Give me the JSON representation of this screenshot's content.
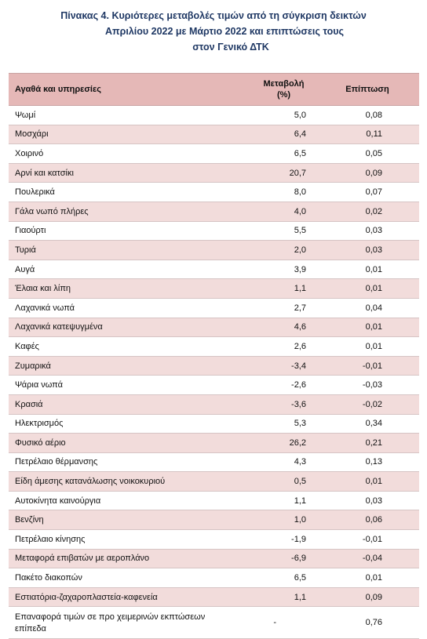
{
  "title": {
    "line1": "Πίνακας  4. Κυριότερες μεταβολές τιμών από τη σύγκριση δεικτών",
    "line2": "Απριλίου 2022 με Μάρτιο 2022 και επιπτώσεις τους",
    "line3": "στον Γενικό ΔΤΚ"
  },
  "table": {
    "headers": {
      "name": "Αγαθά και υπηρεσίες",
      "change_line1": "Μεταβολή",
      "change_line2": "(%)",
      "impact": "Επίπτωση"
    },
    "rows": [
      {
        "name": "Ψωμί",
        "change": "5,0",
        "impact": "0,08"
      },
      {
        "name": "Μοσχάρι",
        "change": "6,4",
        "impact": "0,11"
      },
      {
        "name": "Χοιρινό",
        "change": "6,5",
        "impact": "0,05"
      },
      {
        "name": "Αρνί και κατσίκι",
        "change": "20,7",
        "impact": "0,09"
      },
      {
        "name": "Πουλερικά",
        "change": "8,0",
        "impact": "0,07"
      },
      {
        "name": "Γάλα νωπό πλήρες",
        "change": "4,0",
        "impact": "0,02"
      },
      {
        "name": "Γιαούρτι",
        "change": "5,5",
        "impact": "0,03"
      },
      {
        "name": "Τυριά",
        "change": "2,0",
        "impact": "0,03"
      },
      {
        "name": "Αυγά",
        "change": "3,9",
        "impact": "0,01"
      },
      {
        "name": "Έλαια και λίπη",
        "change": "1,1",
        "impact": "0,01"
      },
      {
        "name": "Λαχανικά νωπά",
        "change": "2,7",
        "impact": "0,04"
      },
      {
        "name": "Λαχανικά κατεψυγμένα",
        "change": "4,6",
        "impact": "0,01"
      },
      {
        "name": "Καφές",
        "change": "2,6",
        "impact": "0,01"
      },
      {
        "name": "Ζυμαρικά",
        "change": "-3,4",
        "impact": "-0,01"
      },
      {
        "name": "Ψάρια νωπά",
        "change": "-2,6",
        "impact": "-0,03"
      },
      {
        "name": "Κρασιά",
        "change": "-3,6",
        "impact": "-0,02"
      },
      {
        "name": "Ηλεκτρισμός",
        "change": "5,3",
        "impact": "0,34"
      },
      {
        "name": "Φυσικό αέριο",
        "change": "26,2",
        "impact": "0,21"
      },
      {
        "name": "Πετρέλαιο θέρμανσης",
        "change": "4,3",
        "impact": "0,13"
      },
      {
        "name": "Είδη άμεσης κατανάλωσης νοικοκυριού",
        "change": "0,5",
        "impact": "0,01"
      },
      {
        "name": "Αυτοκίνητα καινούργια",
        "change": "1,1",
        "impact": "0,03"
      },
      {
        "name": "Βενζίνη",
        "change": "1,0",
        "impact": "0,06"
      },
      {
        "name": "Πετρέλαιο κίνησης",
        "change": "-1,9",
        "impact": "-0,01"
      },
      {
        "name": "Μεταφορά επιβατών με αεροπλάνο",
        "change": "-6,9",
        "impact": "-0,04"
      },
      {
        "name": "Πακέτο διακοπών",
        "change": "6,5",
        "impact": "0,01"
      },
      {
        "name": "Εστιατόρια-ζαχαροπλαστεία-καφενεία",
        "change": "1,1",
        "impact": "0,09"
      },
      {
        "name": "Επαναφορά τιμών σε προ χειμερινών εκπτώσεων επίπεδα",
        "change": "-",
        "impact": "0,76"
      }
    ]
  }
}
